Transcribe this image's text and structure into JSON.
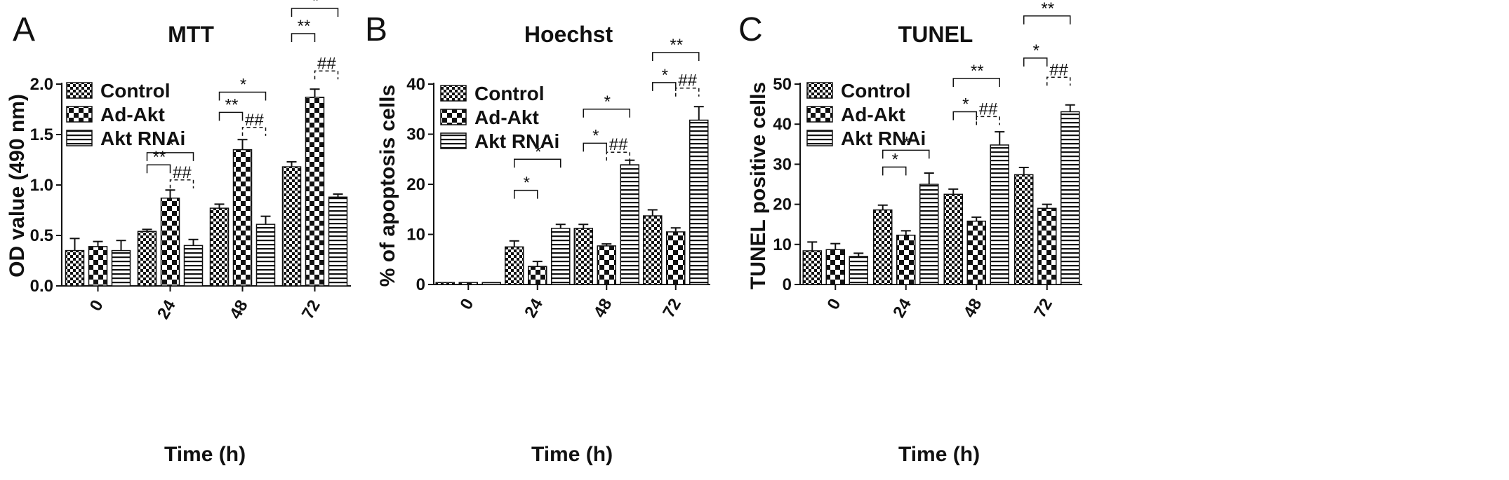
{
  "figure": {
    "legend": [
      "Control",
      "Ad-Akt",
      "Akt RNAi"
    ],
    "xlabel": "Time (h)"
  },
  "chart_data": [
    {
      "type": "bar",
      "panel": "A",
      "title": "MTT",
      "xlabel": "Time (h)",
      "ylabel": "OD value (490 nm)",
      "categories": [
        "0",
        "24",
        "48",
        "72"
      ],
      "ylim": [
        0,
        2.0
      ],
      "yticks": [
        "0.0",
        "0.5",
        "1.0",
        "1.5",
        "2.0"
      ],
      "series": [
        {
          "name": "Control",
          "values": [
            0.35,
            0.54,
            0.77,
            1.18
          ],
          "errors": [
            0.12,
            0.02,
            0.04,
            0.05
          ]
        },
        {
          "name": "Ad-Akt",
          "values": [
            0.39,
            0.87,
            1.35,
            1.87
          ],
          "errors": [
            0.05,
            0.08,
            0.1,
            0.08
          ]
        },
        {
          "name": "Akt RNAi",
          "values": [
            0.35,
            0.4,
            0.61,
            0.88
          ],
          "errors": [
            0.1,
            0.06,
            0.08,
            0.03
          ]
        }
      ],
      "annotations": [
        {
          "group": 1,
          "from": 0,
          "to": 1,
          "label": "**",
          "y": 1.2,
          "style": "solid"
        },
        {
          "group": 1,
          "from": 0,
          "to": 2,
          "label": "*",
          "y": 1.32,
          "style": "solid"
        },
        {
          "group": 1,
          "from": 1,
          "to": 2,
          "label": "##",
          "y": 1.05,
          "style": "dashed"
        },
        {
          "group": 2,
          "from": 0,
          "to": 1,
          "label": "**",
          "y": 1.72,
          "style": "solid"
        },
        {
          "group": 2,
          "from": 0,
          "to": 2,
          "label": "*",
          "y": 1.92,
          "style": "solid"
        },
        {
          "group": 2,
          "from": 1,
          "to": 2,
          "label": "##",
          "y": 1.57,
          "style": "dashed"
        },
        {
          "group": 3,
          "from": 0,
          "to": 1,
          "label": "**",
          "y": 2.5,
          "style": "solid"
        },
        {
          "group": 3,
          "from": 0,
          "to": 2,
          "label": "*",
          "y": 2.75,
          "style": "solid"
        },
        {
          "group": 3,
          "from": 1,
          "to": 2,
          "label": "##",
          "y": 2.13,
          "style": "dashed"
        }
      ]
    },
    {
      "type": "bar",
      "panel": "B",
      "title": "Hoechst",
      "xlabel": "Time (h)",
      "ylabel": "% of apoptosis cells",
      "categories": [
        "0",
        "24",
        "48",
        "72"
      ],
      "ylim": [
        0,
        40
      ],
      "yticks": [
        "0",
        "10",
        "20",
        "30",
        "40"
      ],
      "series": [
        {
          "name": "Control",
          "values": [
            0.4,
            7.5,
            11.2,
            13.7
          ],
          "errors": [
            0,
            1.2,
            0.8,
            1.2
          ]
        },
        {
          "name": "Ad-Akt",
          "values": [
            0.4,
            3.6,
            7.7,
            10.5
          ],
          "errors": [
            0,
            1.0,
            0.4,
            0.8
          ]
        },
        {
          "name": "Akt RNAi",
          "values": [
            0.4,
            11.2,
            23.9,
            32.8
          ],
          "errors": [
            0,
            0.8,
            0.9,
            2.7
          ]
        }
      ],
      "annotations": [
        {
          "group": 1,
          "from": 0,
          "to": 1,
          "label": "*",
          "y": 18.8,
          "style": "solid"
        },
        {
          "group": 1,
          "from": 0,
          "to": 2,
          "label": "*",
          "y": 25.0,
          "style": "solid"
        },
        {
          "group": 2,
          "from": 0,
          "to": 1,
          "label": "*",
          "y": 28.2,
          "style": "solid"
        },
        {
          "group": 2,
          "from": 0,
          "to": 2,
          "label": "*",
          "y": 35.0,
          "style": "solid"
        },
        {
          "group": 2,
          "from": 1,
          "to": 2,
          "label": "##",
          "y": 26.4,
          "style": "dashed"
        },
        {
          "group": 3,
          "from": 0,
          "to": 1,
          "label": "*",
          "y": 40.3,
          "style": "solid"
        },
        {
          "group": 3,
          "from": 0,
          "to": 2,
          "label": "**",
          "y": 46.3,
          "style": "solid"
        },
        {
          "group": 3,
          "from": 1,
          "to": 2,
          "label": "##",
          "y": 39.2,
          "style": "dashed"
        }
      ]
    },
    {
      "type": "bar",
      "panel": "C",
      "title": "TUNEL",
      "xlabel": "Time (h)",
      "ylabel": "TUNEL positive cells",
      "categories": [
        "0",
        "24",
        "48",
        "72"
      ],
      "ylim": [
        0,
        50
      ],
      "yticks": [
        "0",
        "10",
        "20",
        "30",
        "40",
        "50"
      ],
      "series": [
        {
          "name": "Control",
          "values": [
            8.4,
            18.6,
            22.5,
            27.4
          ],
          "errors": [
            2.2,
            1.2,
            1.3,
            1.8
          ]
        },
        {
          "name": "Ad-Akt",
          "values": [
            8.7,
            12.3,
            15.8,
            19.0
          ],
          "errors": [
            1.5,
            1.1,
            1.0,
            1.0
          ]
        },
        {
          "name": "Akt RNAi",
          "values": [
            7.0,
            25.0,
            34.8,
            43.1
          ],
          "errors": [
            0.8,
            2.8,
            3.3,
            1.7
          ]
        }
      ],
      "annotations": [
        {
          "group": 1,
          "from": 0,
          "to": 1,
          "label": "*",
          "y": 29.3,
          "style": "solid"
        },
        {
          "group": 1,
          "from": 0,
          "to": 2,
          "label": "*",
          "y": 33.5,
          "style": "solid"
        },
        {
          "group": 2,
          "from": 0,
          "to": 1,
          "label": "*",
          "y": 43.1,
          "style": "solid"
        },
        {
          "group": 2,
          "from": 0,
          "to": 2,
          "label": "**",
          "y": 51.4,
          "style": "solid"
        },
        {
          "group": 2,
          "from": 1,
          "to": 2,
          "label": "##",
          "y": 41.9,
          "style": "dashed"
        },
        {
          "group": 3,
          "from": 0,
          "to": 1,
          "label": "*",
          "y": 56.5,
          "style": "solid"
        },
        {
          "group": 3,
          "from": 0,
          "to": 2,
          "label": "**",
          "y": 67.0,
          "style": "solid"
        },
        {
          "group": 3,
          "from": 1,
          "to": 2,
          "label": "##",
          "y": 51.7,
          "style": "dashed"
        }
      ]
    }
  ]
}
